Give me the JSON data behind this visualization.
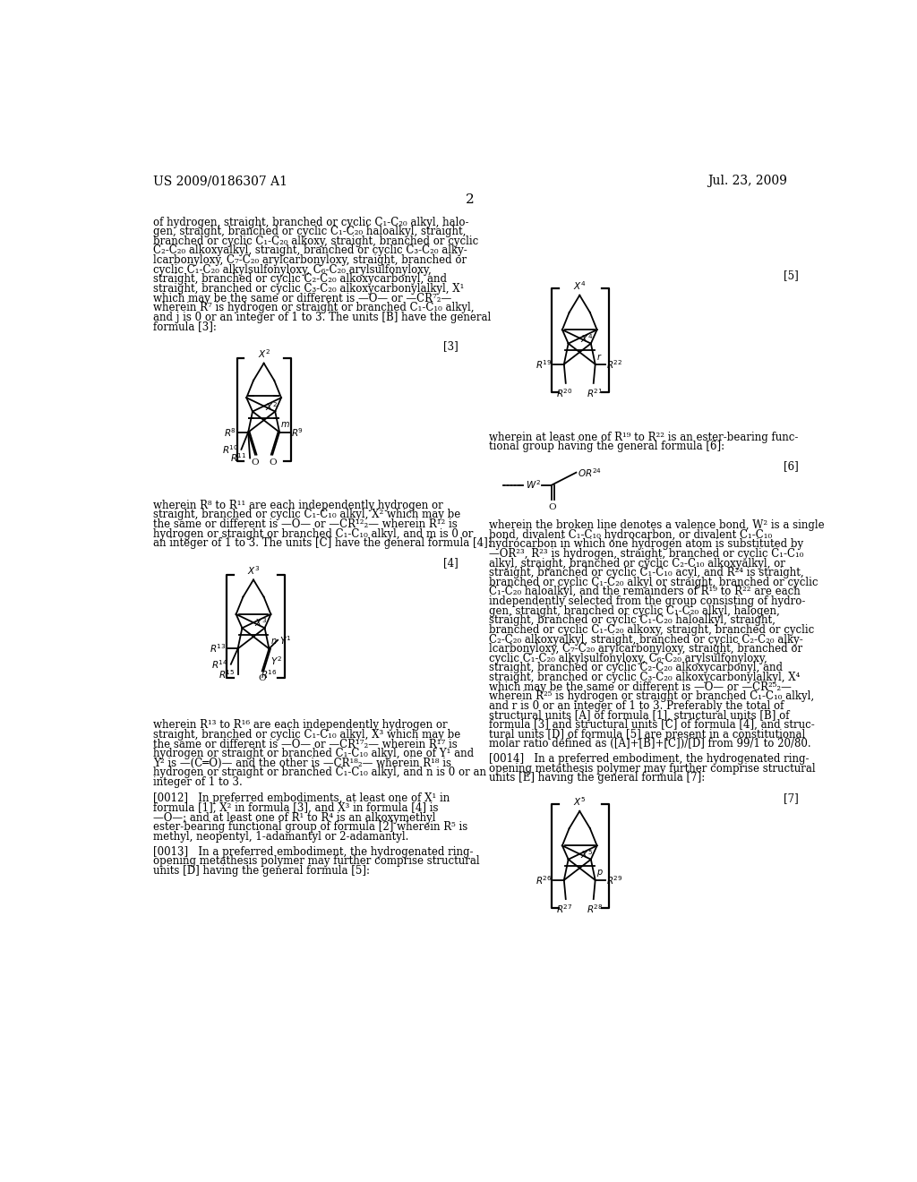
{
  "page_header_left": "US 2009/0186307 A1",
  "page_header_right": "Jul. 23, 2009",
  "page_number": "2",
  "background_color": "#ffffff",
  "text_color": "#000000",
  "left_column_text": [
    "of hydrogen, straight, branched or cyclic C₁-C₂₀ alkyl, halo-",
    "gen, straight, branched or cyclic C₁-C₂₀ haloalkyl, straight,",
    "branched or cyclic C₁-C₂₀ alkoxy, straight, branched or cyclic",
    "C₂-C₂₀ alkoxyalkyl, straight, branched or cyclic C₃-C₂₀ alky-",
    "lcarbonyloxy, C₇-C₂₀ arylcarbonyloxy, straight, branched or",
    "cyclic C₁-C₂₀ alkylsulfonyloxy, C₆-C₂₀ arylsulfonyloxy,",
    "straight, branched or cyclic C₂-C₂₀ alkoxycarbonyl, and",
    "straight, branched or cyclic C₃-C₂₀ alkoxycarbonylalkyl, X¹",
    "which may be the same or different is —O— or —CR⁷₂—",
    "wherein R⁷ is hydrogen or straight or branched C₁-C₁₀ alkyl,",
    "and j is 0 or an integer of 1 to 3. The units [B] have the general",
    "formula [3]:"
  ],
  "formula3_label": "[3]",
  "formula3_desc_text": [
    "wherein R⁸ to R¹¹ are each independently hydrogen or",
    "straight, branched or cyclic C₁-C₁₀ alkyl, X² which may be",
    "the same or different is —O— or —CR¹²₂— wherein R¹² is",
    "hydrogen or straight or branched C₁-C₁₀ alkyl, and m is 0 or",
    "an integer of 1 to 3. The units [C] have the general formula [4]:"
  ],
  "formula4_label": "[4]",
  "formula4_desc_text": [
    "wherein R¹³ to R¹⁶ are each independently hydrogen or",
    "straight, branched or cyclic C₁-C₁₀ alkyl, X³ which may be",
    "the same or different is —O— or —CR¹⁷₂— wherein R¹⁷ is",
    "hydrogen or straight or branched C₁-C₁₀ alkyl, one of Y¹ and",
    "Y² is —(C═O)— and the other is —CR¹⁸₂— wherein R¹⁸ is",
    "hydrogen or straight or branched C₁-C₁₀ alkyl, and n is 0 or an",
    "integer of 1 to 3."
  ],
  "para0012_text": [
    "[0012]   In preferred embodiments, at least one of X¹ in",
    "formula [1], X² in formula [3], and X³ in formula [4] is",
    "—O—; and at least one of R¹ to R⁴ is an alkoxymethyl",
    "ester-bearing functional group of formula [2] wherein R⁵ is",
    "methyl, neopentyl, 1-adamantyl or 2-adamantyl."
  ],
  "para0013_text": [
    "[0013]   In a preferred embodiment, the hydrogenated ring-",
    "opening metathesis polymer may further comprise structural",
    "units [D] having the general formula [5]:"
  ],
  "formula5_label": "[5]",
  "right_col_text1": [
    "wherein at least one of R¹⁹ to R²² is an ester-bearing func-",
    "tional group having the general formula [6]:"
  ],
  "formula6_label": "[6]",
  "right_col_text2": [
    "wherein the broken line denotes a valence bond, W² is a single",
    "bond, divalent C₁-C₁₀ hydrocarbon, or divalent C₁-C₁₀",
    "hydrocarbon in which one hydrogen atom is substituted by",
    "—OR²³, R²³ is hydrogen, straight, branched or cyclic C₁-C₁₀",
    "alkyl, straight, branched or cyclic C₂-C₁₀ alkoxyalkyl, or",
    "straight, branched or cyclic C₁-C₁₀ acyl, and R²⁴ is straight,",
    "branched or cyclic C₁-C₂₀ alkyl or straight, branched or cyclic",
    "C₁-C₂₀ haloalkyl, and the remainders of R¹⁹ to R²² are each",
    "independently selected from the group consisting of hydro-",
    "gen, straight, branched or cyclic C₁-C₂₀ alkyl, halogen,",
    "straight, branched or cyclic C₁-C₂₀ haloalkyl, straight,",
    "branched or cyclic C₁-C₂₀ alkoxy, straight, branched or cyclic",
    "C₂-C₂₀ alkoxyalkyl, straight, branched or cyclic C₂-C₂₀ alky-",
    "lcarbonyloxy, C₇-C₂₀ arylcarbonyloxy, straight, branched or",
    "cyclic C₁-C₂₀ alkylsulfonyloxy, C₆-C₂₀ arylsulfonyloxy,",
    "straight, branched or cyclic C₂-C₂₀ alkoxycarbonyl, and",
    "straight, branched or cyclic C₃-C₂₀ alkoxycarbonylalkyl, X⁴",
    "which may be the same or different is —O— or —CR²⁵₂—",
    "wherein R²⁵ is hydrogen or straight or branched C₁-C₁₀ alkyl,",
    "and r is 0 or an integer of 1 to 3. Preferably the total of",
    "structural units [A] of formula [1], structural units [B] of",
    "formula [3] and structural units [C] of formula [4], and struc-",
    "tural units [D] of formula [5] are present in a constitutional",
    "molar ratio defined as ([A]+[B]+[C])/[D] from 99/1 to 20/80."
  ],
  "para0014_text": [
    "[0014]   In a preferred embodiment, the hydrogenated ring-",
    "opening metathesis polymer may further comprise structural",
    "units [E] having the general formula [7]:"
  ],
  "formula7_label": "[7]"
}
